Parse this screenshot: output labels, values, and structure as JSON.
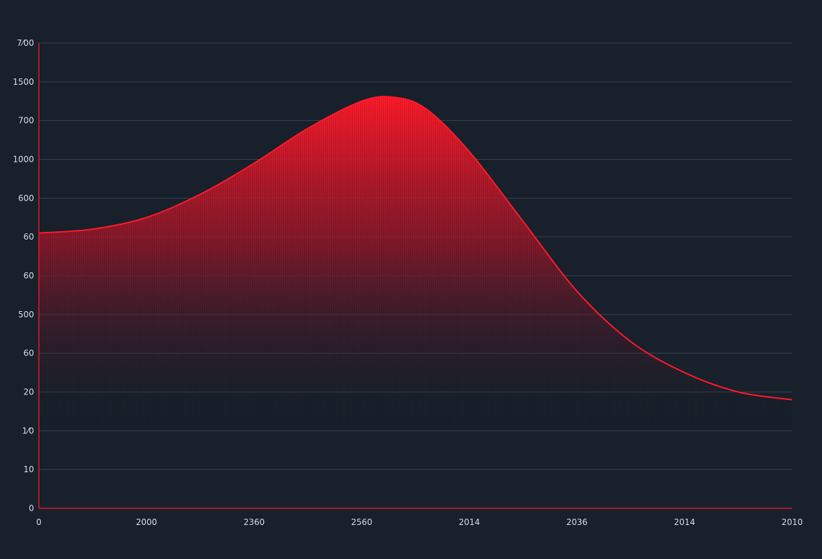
{
  "theme": {
    "background": "#17202b",
    "grid_color": "#3a4452",
    "axis_color": "#e0182b",
    "curve_color": "#ff1a2a",
    "label_color": "#d9dee5"
  },
  "chart_data": {
    "type": "area",
    "title": "",
    "xlabel": "",
    "ylabel": "",
    "grid": true,
    "legend": "none",
    "y_tick_labels": [
      "0",
      "10",
      "1⁄0",
      "20",
      "60",
      "500",
      "60",
      "60",
      "600",
      "1000",
      "700",
      "1500",
      "7⁄00"
    ],
    "x_tick_labels": [
      "0",
      "2000",
      "2360",
      "2560",
      "2014",
      "2036",
      "2014",
      "2010"
    ],
    "ylim": [
      0,
      12
    ],
    "x_positions": [
      0,
      1,
      2,
      3,
      4,
      5,
      6,
      7
    ],
    "series": [
      {
        "x": [
          0,
          0.5,
          1,
          1.5,
          2,
          2.5,
          3,
          3.3,
          3.6,
          4,
          4.5,
          5,
          5.5,
          6,
          6.5,
          7
        ],
        "values": [
          7.1,
          7.2,
          7.5,
          8.1,
          8.9,
          9.8,
          10.5,
          10.6,
          10.3,
          9.2,
          7.4,
          5.6,
          4.3,
          3.5,
          3.0,
          2.8
        ]
      }
    ]
  }
}
